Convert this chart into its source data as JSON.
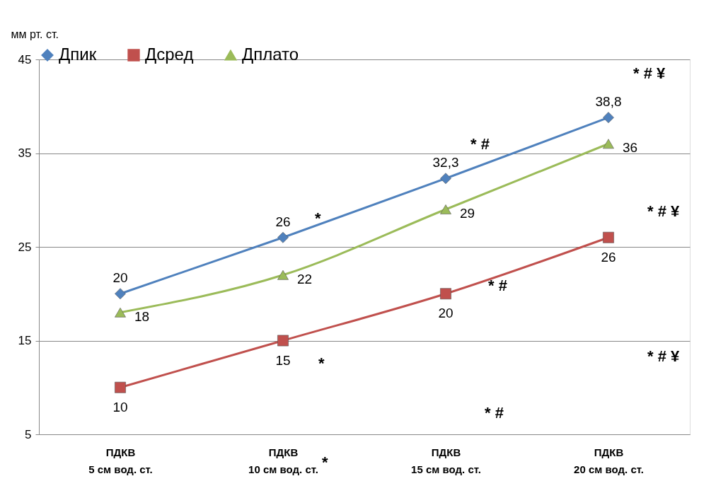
{
  "chart_data": {
    "type": "line",
    "ylabel": "мм рт. ст.",
    "categories": [
      "ПДКВ\n5 см вод. ст.",
      "ПДКВ\n10 см вод. ст.",
      "ПДКВ\n15 см вод. ст.",
      "ПДКВ\n20 см вод. ст."
    ],
    "series": [
      {
        "name": "Дпик",
        "color": "#4f81bd",
        "marker": "diamond",
        "values": [
          20,
          26,
          32.3,
          38.8
        ],
        "value_labels": [
          "20",
          "26",
          "32,3",
          "38,8"
        ]
      },
      {
        "name": "Дсред",
        "color": "#c0504d",
        "marker": "square",
        "values": [
          10,
          15,
          20,
          26
        ],
        "value_labels": [
          "10",
          "15",
          "20",
          "26"
        ]
      },
      {
        "name": "Дплато",
        "color": "#9bbb59",
        "marker": "triangle",
        "values": [
          18,
          22,
          29,
          36
        ],
        "value_labels": [
          "18",
          "22",
          "29",
          "36"
        ]
      }
    ],
    "ylim": [
      5,
      45
    ],
    "yticks": [
      5,
      15,
      25,
      35,
      45
    ],
    "grid": "y",
    "legend": "top",
    "annotations": [
      "*",
      "*",
      "*",
      "* #",
      "* #",
      "* #",
      "* # ¥",
      "* # ¥",
      "* # ¥"
    ]
  }
}
